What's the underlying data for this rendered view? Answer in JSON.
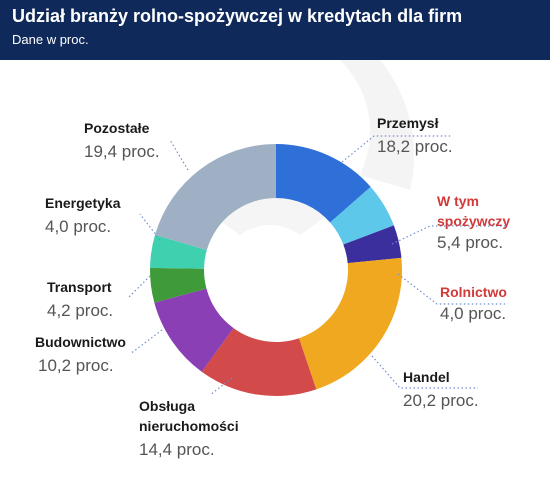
{
  "header": {
    "title": "Udział branży rolno-spożywczej w kredytach dla firm",
    "subtitle": "Dane w proc."
  },
  "colors": {
    "header_bg": "#0f2a5a",
    "label_red": "#d13a3a"
  },
  "chart_data": {
    "type": "pie",
    "donut": true,
    "title": "Udział branży rolno-spożywczej w kredytach dla firm",
    "subtitle": "Dane w proc.",
    "unit": "proc.",
    "slices": [
      {
        "key": "przemysl",
        "name": "Przemysł",
        "name_lines": [
          "Przemysł"
        ],
        "value": 12.8,
        "value_label": "18,2 proc.",
        "color": "#2e6fd8",
        "highlight": false
      },
      {
        "key": "spozywczy",
        "name": "W tym spożywczy",
        "name_lines": [
          "W tym",
          "spożywczy"
        ],
        "value": 5.4,
        "value_label": "5,4 proc.",
        "color": "#5ec8ea",
        "highlight": true
      },
      {
        "key": "rolnictwo",
        "name": "Rolnictwo",
        "name_lines": [
          "Rolnictwo"
        ],
        "value": 4.0,
        "value_label": "4,0 proc.",
        "color": "#3b2f9e",
        "highlight": true
      },
      {
        "key": "handel",
        "name": "Handel",
        "name_lines": [
          "Handel"
        ],
        "value": 20.2,
        "value_label": "20,2 proc.",
        "color": "#f0a820",
        "highlight": false
      },
      {
        "key": "obsluga",
        "name": "Obsługa nieruchomości",
        "name_lines": [
          "Obsługa",
          "nieruchomości"
        ],
        "value": 14.4,
        "value_label": "14,4 proc.",
        "color": "#d24a4a",
        "highlight": false
      },
      {
        "key": "budownictwo",
        "name": "Budownictwo",
        "name_lines": [
          "Budownictwo"
        ],
        "value": 10.2,
        "value_label": "10,2 proc.",
        "color": "#8a3fb5",
        "highlight": false
      },
      {
        "key": "transport",
        "name": "Transport",
        "name_lines": [
          "Transport"
        ],
        "value": 4.2,
        "value_label": "4,2 proc.",
        "color": "#3f9a3a",
        "highlight": false
      },
      {
        "key": "energetyka",
        "name": "Energetyka",
        "name_lines": [
          "Energetyka"
        ],
        "value": 4.0,
        "value_label": "4,0 proc.",
        "color": "#3fd0b0",
        "highlight": false
      },
      {
        "key": "pozostale",
        "name": "Pozostałe",
        "name_lines": [
          "Pozostałe"
        ],
        "value": 19.4,
        "value_label": "19,4 proc.",
        "color": "#9fb0c4",
        "highlight": false
      }
    ]
  }
}
